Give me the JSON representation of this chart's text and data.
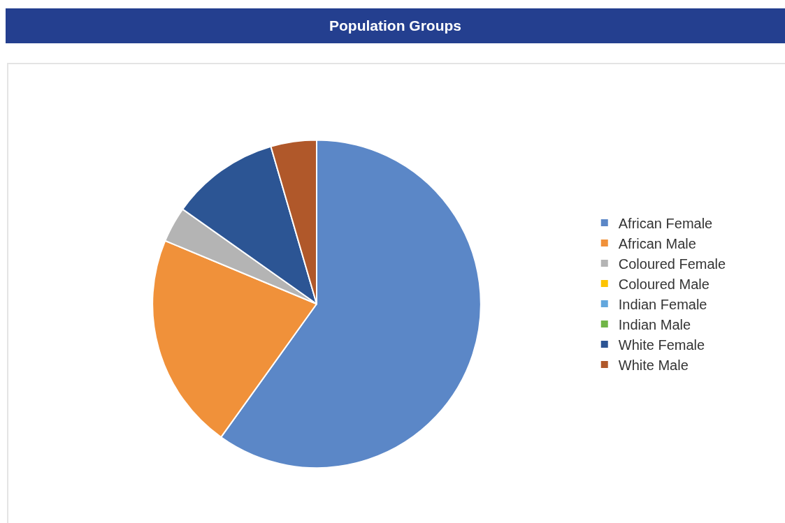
{
  "chart_data": {
    "type": "pie",
    "title": "Population Groups",
    "categories": [
      "African Female",
      "African Male",
      "Coloured Female",
      "Coloured Male",
      "Indian Female",
      "Indian Male",
      "White Female",
      "White Male"
    ],
    "values": [
      59.9,
      21.4,
      3.5,
      0,
      0,
      0,
      10.7,
      4.5
    ],
    "colors": [
      "#5b87c7",
      "#f0913a",
      "#b4b4b4",
      "#fdc300",
      "#63a7dd",
      "#70b547",
      "#2c5594",
      "#b0582a"
    ],
    "legend": "right"
  }
}
